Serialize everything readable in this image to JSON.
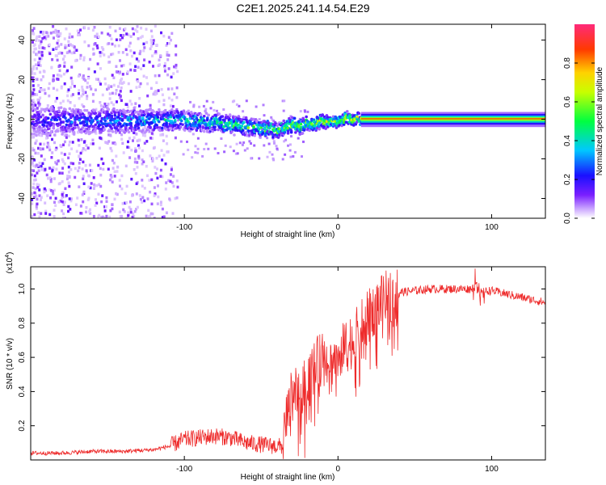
{
  "title": "C2E1.2025.241.14.54.E29",
  "chart_data": [
    {
      "type": "heatmap",
      "name": "spectrogram",
      "xlabel": "Height of straight line (km)",
      "ylabel": "Frequency (Hz)",
      "xlim": [
        -200,
        135
      ],
      "ylim": [
        -50,
        48
      ],
      "xticks": [
        -100,
        0,
        100
      ],
      "yticks": [
        -40,
        -20,
        0,
        20,
        40
      ],
      "ridge": {
        "x": [
          -200,
          -150,
          -100,
          -80,
          -60,
          -45,
          -40,
          -35,
          -30,
          -25,
          -20,
          -15,
          -10,
          -5,
          0,
          5,
          10,
          15,
          135
        ],
        "y": [
          0,
          0,
          0,
          -1,
          -3,
          -4,
          -5,
          -3,
          -2,
          -3,
          -1,
          -1,
          0,
          0,
          0,
          1,
          1,
          0,
          0
        ]
      },
      "colorbar": {
        "label": "Normalized spectral amplitude",
        "range": [
          0,
          1
        ],
        "ticks": [
          "0.0",
          "0.2",
          "0.4",
          "0.6",
          "0.8"
        ]
      }
    },
    {
      "type": "line",
      "name": "snr",
      "color": "#ee2b2b",
      "xlabel": "Height of straight line (km)",
      "ylabel": "SNR (10 * v/v)",
      "yscale_label": "(x10",
      "yscale_exp": "4",
      "xlim": [
        -200,
        135
      ],
      "ylim": [
        0,
        1.13
      ],
      "xticks": [
        -100,
        0,
        100
      ],
      "yticks": [
        "0.2",
        "0.4",
        "0.6",
        "0.8",
        "1.0"
      ],
      "series": [
        {
          "name": "SNR",
          "x": [
            -200,
            -180,
            -160,
            -140,
            -120,
            -110,
            -100,
            -90,
            -80,
            -70,
            -60,
            -50,
            -40,
            -36,
            -33,
            -30,
            -27,
            -24,
            -20,
            -15,
            -10,
            -5,
            0,
            5,
            10,
            15,
            20,
            25,
            30,
            35,
            40,
            50,
            60,
            70,
            80,
            86,
            90,
            93,
            96,
            100,
            110,
            120,
            135
          ],
          "y": [
            0.04,
            0.04,
            0.05,
            0.05,
            0.06,
            0.08,
            0.12,
            0.13,
            0.14,
            0.13,
            0.1,
            0.09,
            0.08,
            0.08,
            0.28,
            0.4,
            0.45,
            0.35,
            0.5,
            0.55,
            0.6,
            0.56,
            0.62,
            0.66,
            0.7,
            0.78,
            0.84,
            0.9,
            0.94,
            0.97,
            0.98,
            0.99,
            1.0,
            1.0,
            1.0,
            1.0,
            1.02,
            0.98,
            0.99,
            0.99,
            0.97,
            0.95,
            0.92
          ]
        }
      ]
    }
  ]
}
